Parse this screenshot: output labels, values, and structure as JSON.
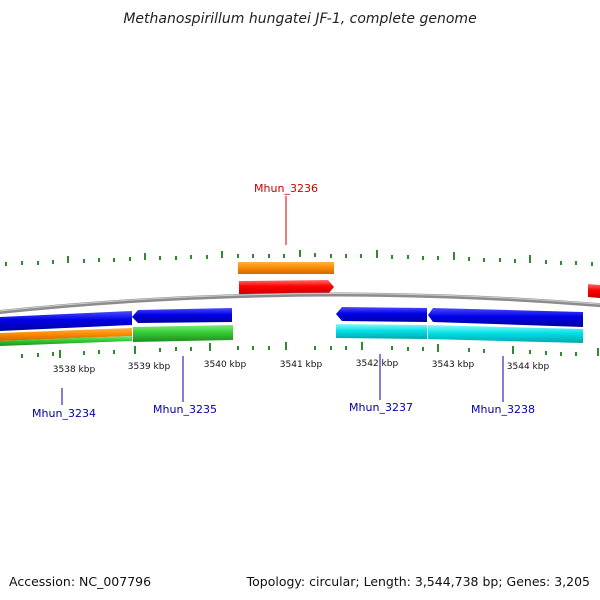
{
  "title": "Methanospirillum hungatei JF-1, complete genome",
  "footer": {
    "accession": "Accession: NC_007796",
    "summary": "Topology: circular; Length: 3,544,738 bp; Genes: 3,205"
  },
  "colors": {
    "backbone": "#8c8c8c",
    "ticks": "#2e8b2e",
    "forward_label": "#cc0000",
    "reverse_label": "#0000aa",
    "cds_orange": "#ff8c00",
    "gene_red": "#ff0000",
    "cds_blue": "#0000e6",
    "gene_green": "#33cc33",
    "gene_cyan": "#00e0e6"
  },
  "scale": {
    "tick_labels": [
      {
        "id": "3538",
        "text": "3538 kbp"
      },
      {
        "id": "3539",
        "text": "3539 kbp"
      },
      {
        "id": "3540",
        "text": "3540 kbp"
      },
      {
        "id": "3541",
        "text": "3541 kbp"
      },
      {
        "id": "3542",
        "text": "3542 kbp"
      },
      {
        "id": "3543",
        "text": "3543 kbp"
      },
      {
        "id": "3544",
        "text": "3544 kbp"
      }
    ]
  },
  "genes": [
    {
      "id": "mhun-3234",
      "label": "Mhun_3234",
      "strand": "reverse"
    },
    {
      "id": "mhun-3235",
      "label": "Mhun_3235",
      "strand": "reverse"
    },
    {
      "id": "mhun-3236",
      "label": "Mhun_3236",
      "strand": "forward"
    },
    {
      "id": "mhun-3237",
      "label": "Mhun_3237",
      "strand": "reverse"
    },
    {
      "id": "mhun-3238",
      "label": "Mhun_3238",
      "strand": "reverse"
    }
  ]
}
